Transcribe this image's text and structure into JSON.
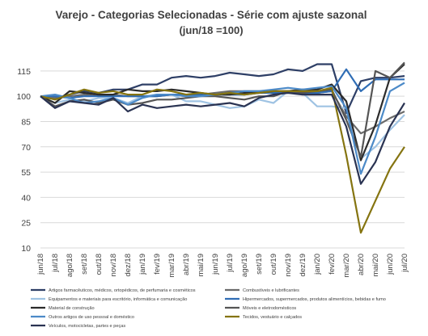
{
  "chart_data": {
    "type": "line",
    "title": "Varejo - Categorias Selecionadas - Série com ajuste sazonal",
    "subtitle": "(jun/18 =100)",
    "xlabel": "",
    "ylabel": "",
    "ylim": [
      10,
      125
    ],
    "yticks": [
      10,
      25,
      40,
      55,
      70,
      85,
      100,
      115
    ],
    "grid": true,
    "legend_position": "bottom",
    "categories": [
      "jun/18",
      "jul/18",
      "ago/18",
      "set/18",
      "out/18",
      "nov/18",
      "dez/18",
      "jan/19",
      "fev/19",
      "mar/19",
      "abr/19",
      "mai/19",
      "jun/19",
      "jul/19",
      "ago/19",
      "set/19",
      "out/19",
      "nov/19",
      "dez/19",
      "jan/20",
      "fev/20",
      "mar/20",
      "abr/20",
      "mai/20",
      "jun/20",
      "jul/20"
    ],
    "series": [
      {
        "name": "Artigos farmacêuticos, médicos, ortopédicos, de perfumaria e cosméticos",
        "color": "#2e3f66",
        "values": [
          100,
          99,
          101,
          103,
          102,
          104,
          104,
          107,
          107,
          111,
          112,
          111,
          112,
          114,
          113,
          112,
          113,
          116,
          115,
          119,
          119,
          90,
          109,
          111,
          111,
          112
        ]
      },
      {
        "name": "Combustíveis e lubrificantes",
        "color": "#6b6b6b",
        "values": [
          100,
          99,
          100,
          101,
          100,
          101,
          100,
          100,
          100,
          101,
          100,
          101,
          102,
          103,
          103,
          103,
          103,
          103,
          102,
          102,
          103,
          88,
          78,
          82,
          87,
          91
        ]
      },
      {
        "name": "Equipamentos e materiais para escritório, informática e comunicação",
        "color": "#9fc3e3",
        "values": [
          100,
          96,
          98,
          97,
          99,
          99,
          96,
          100,
          101,
          101,
          97,
          97,
          95,
          93,
          94,
          98,
          96,
          103,
          102,
          94,
          94,
          93,
          63,
          70,
          80,
          89
        ]
      },
      {
        "name": "Hipermercados, supermercados, produtos alimentícios, bebidas e fumo",
        "color": "#2f6db5",
        "values": [
          100,
          100,
          99,
          100,
          100,
          100,
          100,
          100,
          100,
          101,
          101,
          101,
          101,
          101,
          101,
          102,
          102,
          102,
          102,
          102,
          103,
          116,
          103,
          110,
          110,
          110
        ]
      },
      {
        "name": "Material de construção",
        "color": "#2b2b2b",
        "values": [
          100,
          96,
          103,
          102,
          101,
          101,
          104,
          103,
          103,
          104,
          103,
          102,
          101,
          101,
          102,
          102,
          103,
          103,
          104,
          104,
          107,
          97,
          62,
          83,
          111,
          119
        ]
      },
      {
        "name": "Móveis e eletrodomésticos",
        "color": "#555555",
        "values": [
          100,
          94,
          97,
          98,
          96,
          98,
          95,
          96,
          98,
          98,
          99,
          100,
          100,
          99,
          98,
          100,
          100,
          103,
          102,
          103,
          104,
          86,
          64,
          115,
          111,
          120
        ]
      },
      {
        "name": "Outros artigos de uso pessoal e doméstico",
        "color": "#4c8ac8",
        "values": [
          100,
          101,
          99,
          96,
          97,
          99,
          95,
          99,
          101,
          101,
          100,
          100,
          101,
          102,
          103,
          103,
          104,
          105,
          104,
          105,
          106,
          93,
          54,
          76,
          103,
          108
        ]
      },
      {
        "name": "Tecidos, vestuário e calçados",
        "color": "#857410",
        "values": [
          100,
          98,
          101,
          104,
          102,
          103,
          101,
          101,
          104,
          103,
          101,
          102,
          101,
          102,
          101,
          102,
          103,
          103,
          103,
          103,
          105,
          65,
          19,
          38,
          57,
          70
        ]
      },
      {
        "name": "Veículos, motocicletas, partes e peças",
        "color": "#2a3352",
        "values": [
          100,
          93,
          97,
          96,
          95,
          99,
          91,
          95,
          93,
          94,
          95,
          94,
          95,
          96,
          94,
          99,
          101,
          102,
          101,
          101,
          101,
          82,
          48,
          61,
          82,
          96
        ]
      }
    ]
  }
}
